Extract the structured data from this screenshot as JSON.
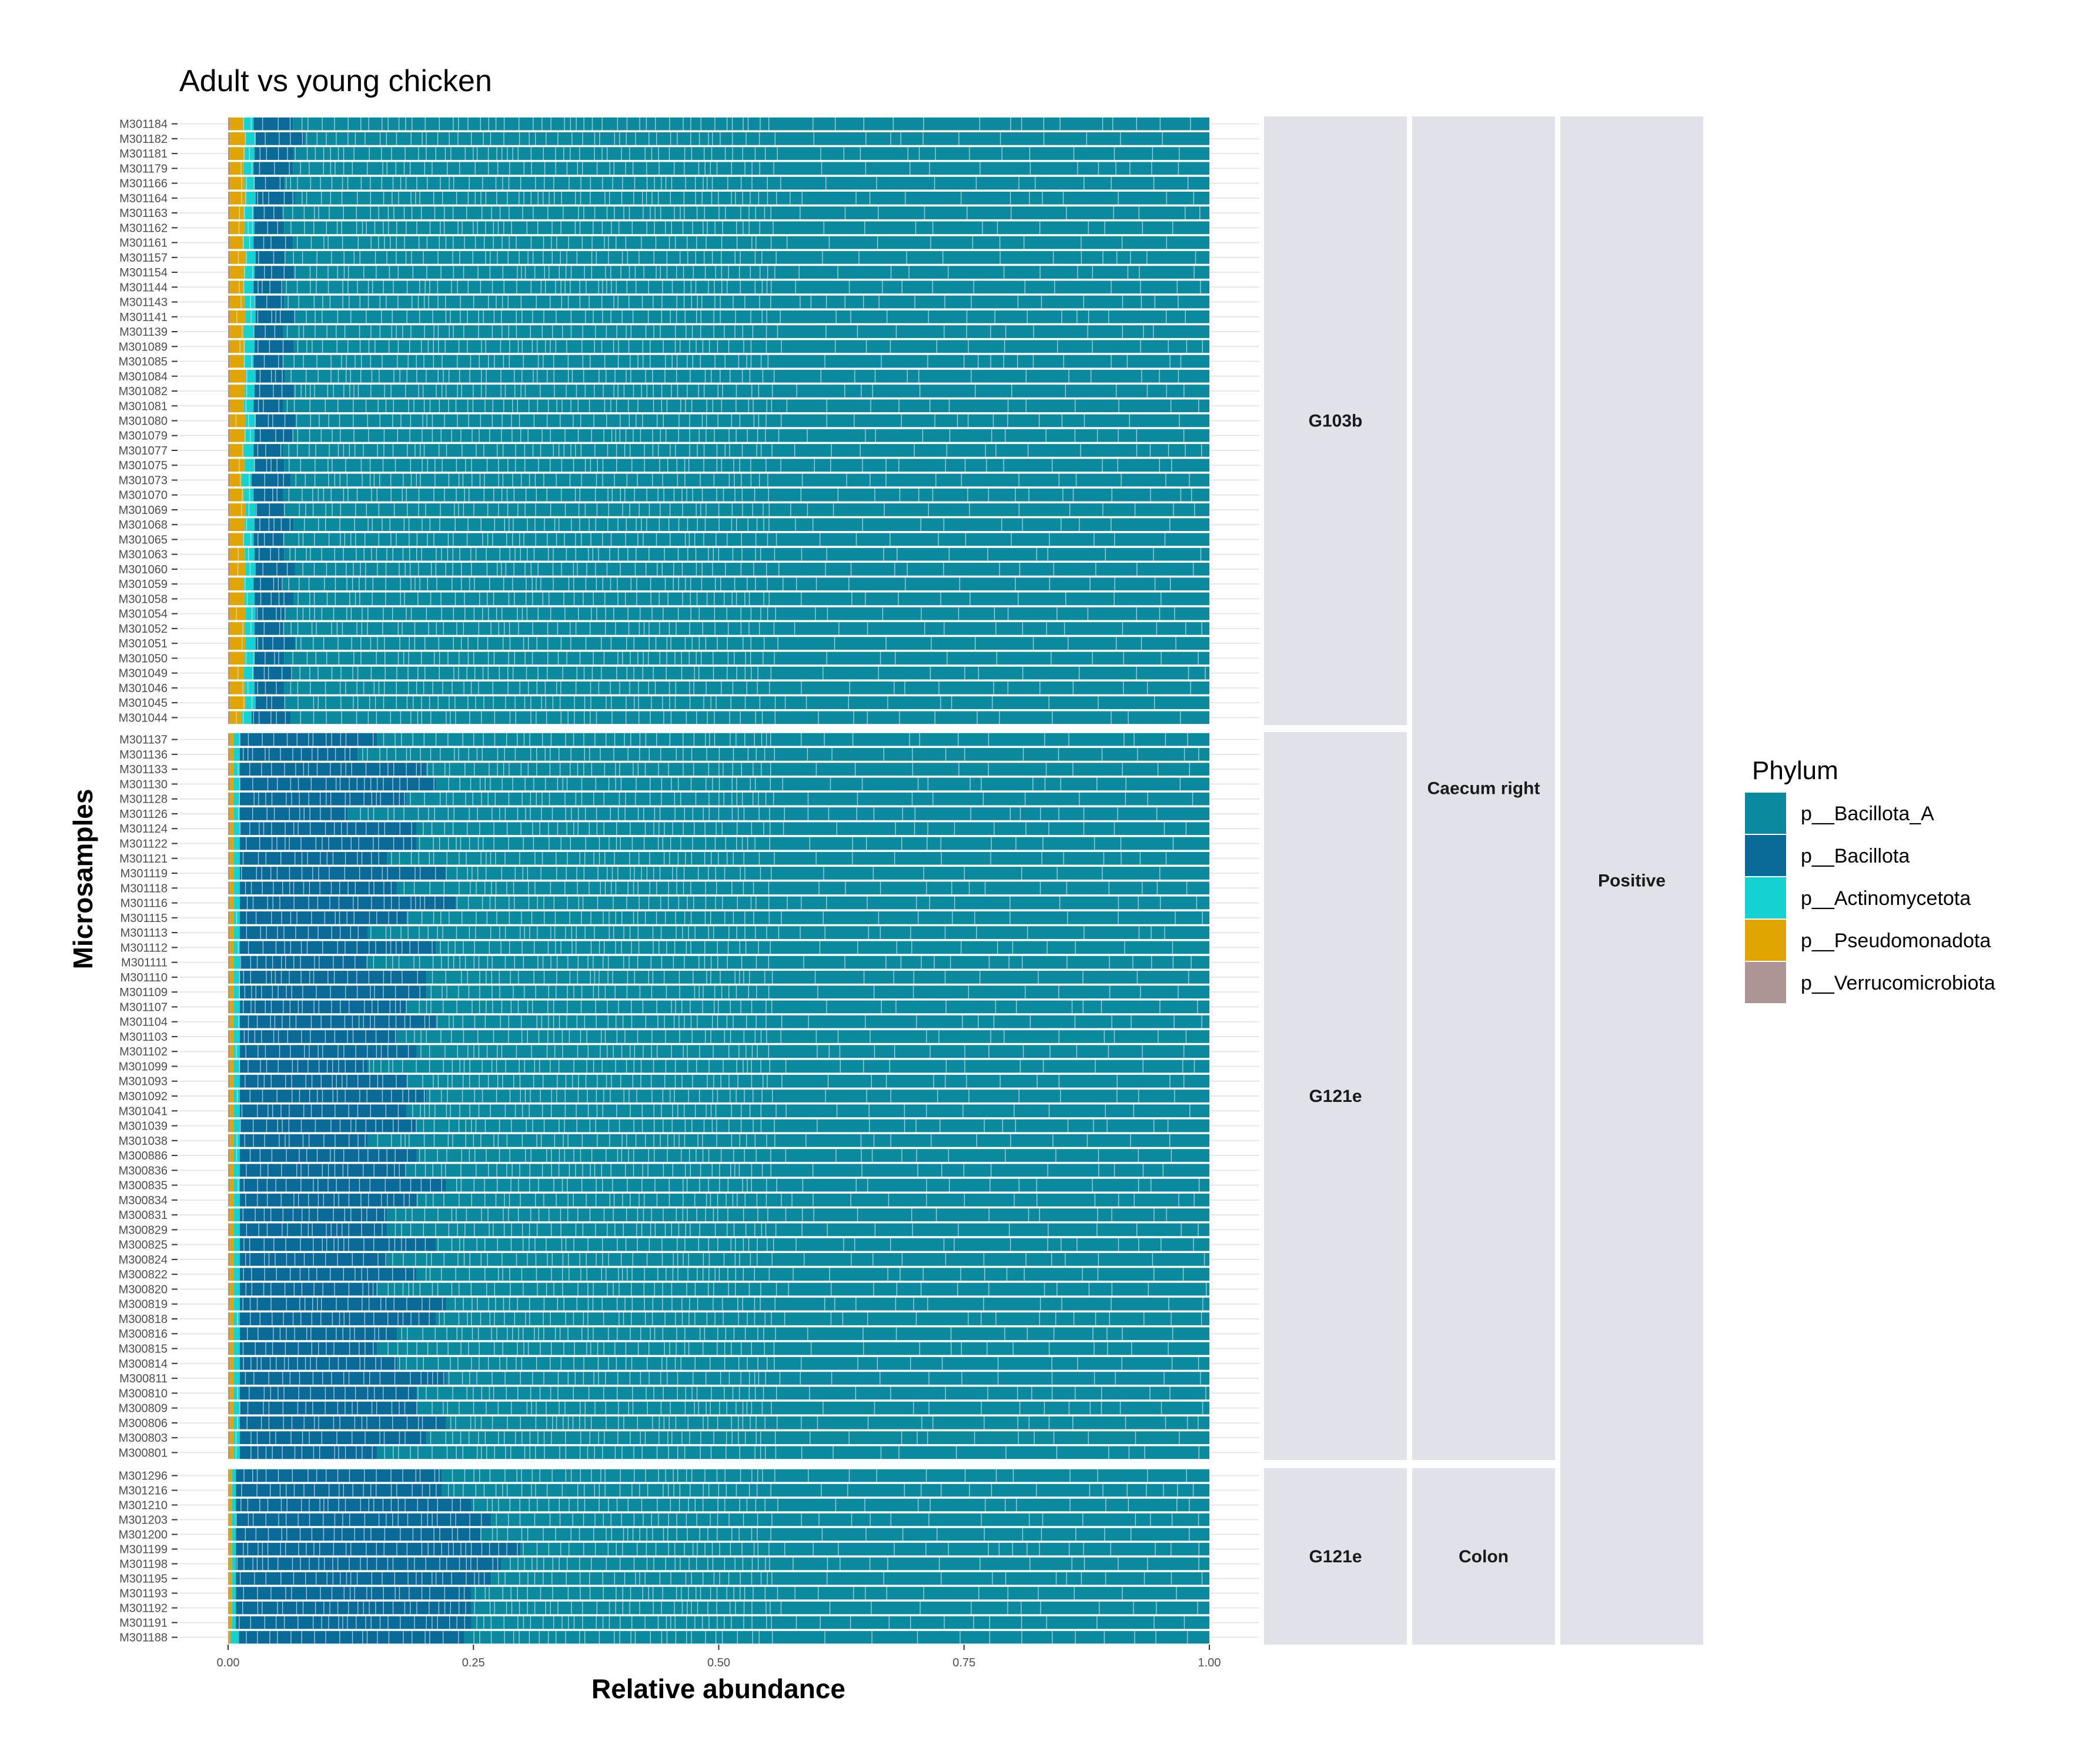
{
  "chart_data": {
    "type": "bar",
    "orientation": "horizontal",
    "stacked": true,
    "title": "Adult vs young chicken",
    "xlabel": "Relative abundance",
    "ylabel": "Microsamples",
    "xlim": [
      0,
      1
    ],
    "x_ticks": [
      "0.00",
      "0.25",
      "0.50",
      "0.75",
      "1.00"
    ],
    "grid": true,
    "legend_position": "right",
    "legend": {
      "title": "Phylum",
      "items": [
        {
          "label": "p__Bacillota_A",
          "color": "#0B8A9E"
        },
        {
          "label": "p__Bacillota",
          "color": "#0A6A98"
        },
        {
          "label": "p__Actinomycetota",
          "color": "#14D2D0"
        },
        {
          "label": "p__Pseudomonadota",
          "color": "#E0A500"
        },
        {
          "label": "p__Verrucomicrobiota",
          "color": "#AD9394"
        }
      ]
    },
    "facet_strips": {
      "level1": [
        {
          "label": "G103b",
          "panel": 0
        },
        {
          "label": "G121e",
          "panel": 1
        },
        {
          "label": "G121e",
          "panel": 2
        }
      ],
      "level2": [
        {
          "label": "Caecum right",
          "panels": [
            0,
            1
          ]
        },
        {
          "label": "Colon",
          "panels": [
            2
          ]
        }
      ],
      "level3": [
        {
          "label": "Positive",
          "panels": [
            0,
            1,
            2
          ]
        }
      ]
    },
    "panels": [
      {
        "samples": [
          "M301184",
          "M301182",
          "M301181",
          "M301179",
          "M301166",
          "M301164",
          "M301163",
          "M301162",
          "M301161",
          "M301157",
          "M301154",
          "M301144",
          "M301143",
          "M301141",
          "M301139",
          "M301089",
          "M301085",
          "M301084",
          "M301082",
          "M301081",
          "M301080",
          "M301079",
          "M301077",
          "M301075",
          "M301073",
          "M301070",
          "M301069",
          "M301068",
          "M301065",
          "M301063",
          "M301060",
          "M301059",
          "M301058",
          "M301054",
          "M301052",
          "M301051",
          "M301050",
          "M301049",
          "M301046",
          "M301045",
          "M301044"
        ],
        "bacillota": [
          0.04,
          0.05,
          0.04,
          0.04,
          0.03,
          0.04,
          0.03,
          0.03,
          0.04,
          0.03,
          0.04,
          0.03,
          0.03,
          0.04,
          0.03,
          0.04,
          0.03,
          0.03,
          0.04,
          0.03,
          0.04,
          0.04,
          0.03,
          0.03,
          0.04,
          0.03,
          0.03,
          0.04,
          0.03,
          0.03,
          0.04,
          0.03,
          0.04,
          0.03,
          0.03,
          0.04,
          0.03,
          0.04,
          0.03,
          0.03,
          0.04
        ],
        "actinomycetota": [
          0.01,
          0.01,
          0.01,
          0.01,
          0.01,
          0.01,
          0.01,
          0.01,
          0.01,
          0.01,
          0.01,
          0.01,
          0.01,
          0.01,
          0.01,
          0.01,
          0.01,
          0.01,
          0.01,
          0.01,
          0.01,
          0.01,
          0.01,
          0.01,
          0.01,
          0.01,
          0.01,
          0.01,
          0.01,
          0.01,
          0.01,
          0.01,
          0.01,
          0.01,
          0.01,
          0.01,
          0.01,
          0.01,
          0.01,
          0.01,
          0.01
        ],
        "pseudomonadota": [
          0.014,
          0.016,
          0.015,
          0.014,
          0.015,
          0.016,
          0.014,
          0.015,
          0.014,
          0.016,
          0.015,
          0.014,
          0.015,
          0.016,
          0.014,
          0.015,
          0.014,
          0.016,
          0.015,
          0.014,
          0.016,
          0.015,
          0.014,
          0.015,
          0.012,
          0.014,
          0.016,
          0.015,
          0.014,
          0.015,
          0.016,
          0.014,
          0.015,
          0.016,
          0.015,
          0.016,
          0.015,
          0.014,
          0.015,
          0.016,
          0.012
        ],
        "verrucomicrobiota": [
          0.002,
          0.002,
          0.002,
          0.002,
          0.002,
          0.002,
          0.002,
          0.002,
          0.002,
          0.002,
          0.002,
          0.002,
          0.002,
          0.002,
          0.002,
          0.002,
          0.002,
          0.002,
          0.002,
          0.002,
          0.002,
          0.002,
          0.002,
          0.002,
          0.002,
          0.002,
          0.002,
          0.002,
          0.002,
          0.002,
          0.002,
          0.002,
          0.002,
          0.002,
          0.002,
          0.002,
          0.002,
          0.002,
          0.002,
          0.002,
          0.002
        ]
      },
      {
        "samples": [
          "M301137",
          "M301136",
          "M301133",
          "M301130",
          "M301128",
          "M301126",
          "M301124",
          "M301122",
          "M301121",
          "M301119",
          "M301118",
          "M301116",
          "M301115",
          "M301113",
          "M301112",
          "M301111",
          "M301110",
          "M301109",
          "M301107",
          "M301104",
          "M301103",
          "M301102",
          "M301099",
          "M301093",
          "M301092",
          "M301041",
          "M301039",
          "M301038",
          "M300886",
          "M300836",
          "M300835",
          "M300834",
          "M300831",
          "M300829",
          "M300825",
          "M300824",
          "M300822",
          "M300820",
          "M300819",
          "M300818",
          "M300816",
          "M300815",
          "M300814",
          "M300811",
          "M300810",
          "M300809",
          "M300806",
          "M300803",
          "M300801"
        ],
        "bacillota": [
          0.14,
          0.12,
          0.19,
          0.2,
          0.17,
          0.11,
          0.18,
          0.18,
          0.15,
          0.21,
          0.16,
          0.22,
          0.17,
          0.13,
          0.2,
          0.13,
          0.19,
          0.19,
          0.17,
          0.2,
          0.16,
          0.18,
          0.13,
          0.17,
          0.19,
          0.17,
          0.18,
          0.13,
          0.18,
          0.17,
          0.21,
          0.18,
          0.15,
          0.15,
          0.2,
          0.15,
          0.18,
          0.14,
          0.21,
          0.2,
          0.16,
          0.14,
          0.16,
          0.21,
          0.18,
          0.18,
          0.21,
          0.19,
          0.14
        ],
        "actinomycetota": [
          0.006,
          0.006,
          0.006,
          0.006,
          0.006,
          0.006,
          0.006,
          0.006,
          0.006,
          0.006,
          0.006,
          0.006,
          0.006,
          0.006,
          0.006,
          0.006,
          0.006,
          0.006,
          0.006,
          0.006,
          0.006,
          0.006,
          0.006,
          0.006,
          0.006,
          0.006,
          0.006,
          0.006,
          0.006,
          0.006,
          0.006,
          0.006,
          0.006,
          0.006,
          0.006,
          0.006,
          0.006,
          0.006,
          0.006,
          0.006,
          0.006,
          0.006,
          0.006,
          0.006,
          0.006,
          0.006,
          0.006,
          0.006,
          0.006
        ],
        "pseudomonadota": [
          0.004,
          0.004,
          0.004,
          0.004,
          0.004,
          0.004,
          0.004,
          0.004,
          0.004,
          0.004,
          0.004,
          0.004,
          0.004,
          0.004,
          0.004,
          0.004,
          0.004,
          0.004,
          0.004,
          0.004,
          0.004,
          0.004,
          0.004,
          0.004,
          0.004,
          0.004,
          0.004,
          0.004,
          0.004,
          0.004,
          0.004,
          0.004,
          0.004,
          0.004,
          0.004,
          0.004,
          0.004,
          0.004,
          0.004,
          0.004,
          0.004,
          0.004,
          0.004,
          0.004,
          0.004,
          0.004,
          0.004,
          0.004,
          0.004
        ],
        "verrucomicrobiota": [
          0.002,
          0.002,
          0.002,
          0.002,
          0.002,
          0.002,
          0.002,
          0.002,
          0.002,
          0.002,
          0.002,
          0.002,
          0.002,
          0.002,
          0.002,
          0.002,
          0.002,
          0.002,
          0.002,
          0.002,
          0.002,
          0.002,
          0.002,
          0.002,
          0.002,
          0.002,
          0.002,
          0.002,
          0.002,
          0.002,
          0.002,
          0.002,
          0.002,
          0.002,
          0.002,
          0.002,
          0.002,
          0.002,
          0.002,
          0.002,
          0.002,
          0.002,
          0.002,
          0.002,
          0.002,
          0.002,
          0.002,
          0.002,
          0.002
        ]
      },
      {
        "samples": [
          "M301296",
          "M301216",
          "M301210",
          "M301203",
          "M301200",
          "M301199",
          "M301198",
          "M301195",
          "M301193",
          "M301192",
          "M301191",
          "M301188"
        ],
        "bacillota": [
          0.21,
          0.21,
          0.24,
          0.26,
          0.25,
          0.29,
          0.27,
          0.26,
          0.24,
          0.24,
          0.24,
          0.23
        ],
        "actinomycetota": [
          0.004,
          0.004,
          0.004,
          0.004,
          0.004,
          0.004,
          0.004,
          0.004,
          0.004,
          0.004,
          0.004,
          0.008
        ],
        "pseudomonadota": [
          0.003,
          0.003,
          0.003,
          0.003,
          0.003,
          0.003,
          0.003,
          0.003,
          0.003,
          0.003,
          0.003,
          0.002
        ],
        "verrucomicrobiota": [
          0.001,
          0.001,
          0.001,
          0.001,
          0.001,
          0.001,
          0.001,
          0.001,
          0.001,
          0.001,
          0.001,
          0.001
        ]
      }
    ]
  }
}
